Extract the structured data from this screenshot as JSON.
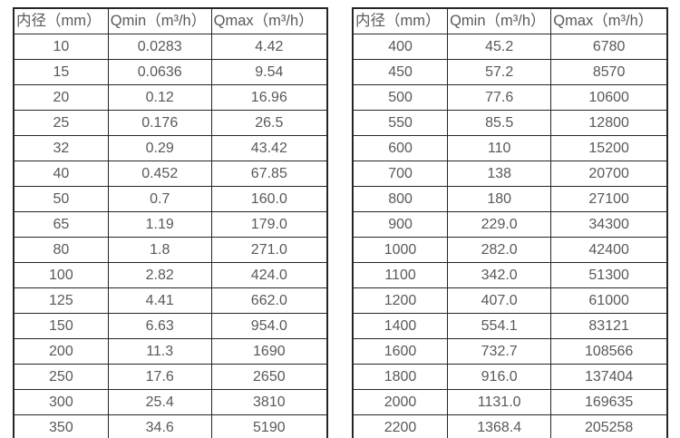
{
  "left_table": {
    "headers": [
      "内径（mm）",
      "Qmin（m³/h）",
      "Qmax（m³/h）"
    ],
    "rows": [
      [
        "10",
        "0.0283",
        "4.42"
      ],
      [
        "15",
        "0.0636",
        "9.54"
      ],
      [
        "20",
        "0.12",
        "16.96"
      ],
      [
        "25",
        "0.176",
        "26.5"
      ],
      [
        "32",
        "0.29",
        "43.42"
      ],
      [
        "40",
        "0.452",
        "67.85"
      ],
      [
        "50",
        "0.7",
        "160.0"
      ],
      [
        "65",
        "1.19",
        "179.0"
      ],
      [
        "80",
        "1.8",
        "271.0"
      ],
      [
        "100",
        "2.82",
        "424.0"
      ],
      [
        "125",
        "4.41",
        "662.0"
      ],
      [
        "150",
        "6.63",
        "954.0"
      ],
      [
        "200",
        "11.3",
        "1690"
      ],
      [
        "250",
        "17.6",
        "2650"
      ],
      [
        "300",
        "25.4",
        "3810"
      ],
      [
        "350",
        "34.6",
        "5190"
      ]
    ]
  },
  "right_table": {
    "headers": [
      "内径（mm）",
      "Qmin（m³/h）",
      "Qmax（m³/h）"
    ],
    "rows": [
      [
        "400",
        "45.2",
        "6780"
      ],
      [
        "450",
        "57.2",
        "8570"
      ],
      [
        "500",
        "77.6",
        "10600"
      ],
      [
        "550",
        "85.5",
        "12800"
      ],
      [
        "600",
        "110",
        "15200"
      ],
      [
        "700",
        "138",
        "20700"
      ],
      [
        "800",
        "180",
        "27100"
      ],
      [
        "900",
        "229.0",
        "34300"
      ],
      [
        "1000",
        "282.0",
        "42400"
      ],
      [
        "1100",
        "342.0",
        "51300"
      ],
      [
        "1200",
        "407.0",
        "61000"
      ],
      [
        "1400",
        "554.1",
        "83121"
      ],
      [
        "1600",
        "732.7",
        "108566"
      ],
      [
        "1800",
        "916.0",
        "137404"
      ],
      [
        "2000",
        "1131.0",
        "169635"
      ],
      [
        "2200",
        "1368.4",
        "205258"
      ]
    ]
  },
  "colors": {
    "border": "#262626",
    "text": "#595959",
    "background": "#ffffff"
  }
}
